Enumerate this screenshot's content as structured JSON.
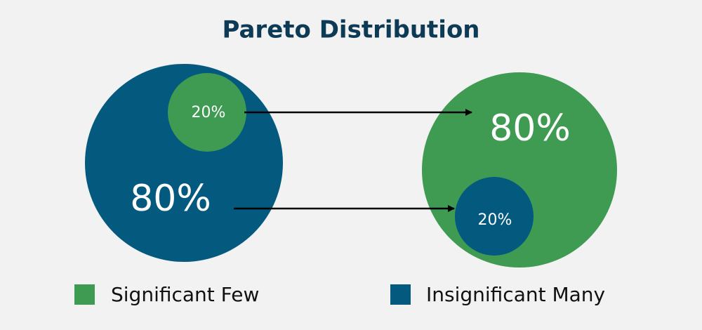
{
  "title": "Pareto Distribution",
  "left": {
    "outer_label": "80%",
    "inner_label": "20%"
  },
  "right": {
    "outer_label": "80%",
    "inner_label": "20%"
  },
  "legend": [
    {
      "label": "Significant Few",
      "color": "#3f9b52"
    },
    {
      "label": "Insignificant Many",
      "color": "#035a7e"
    }
  ]
}
